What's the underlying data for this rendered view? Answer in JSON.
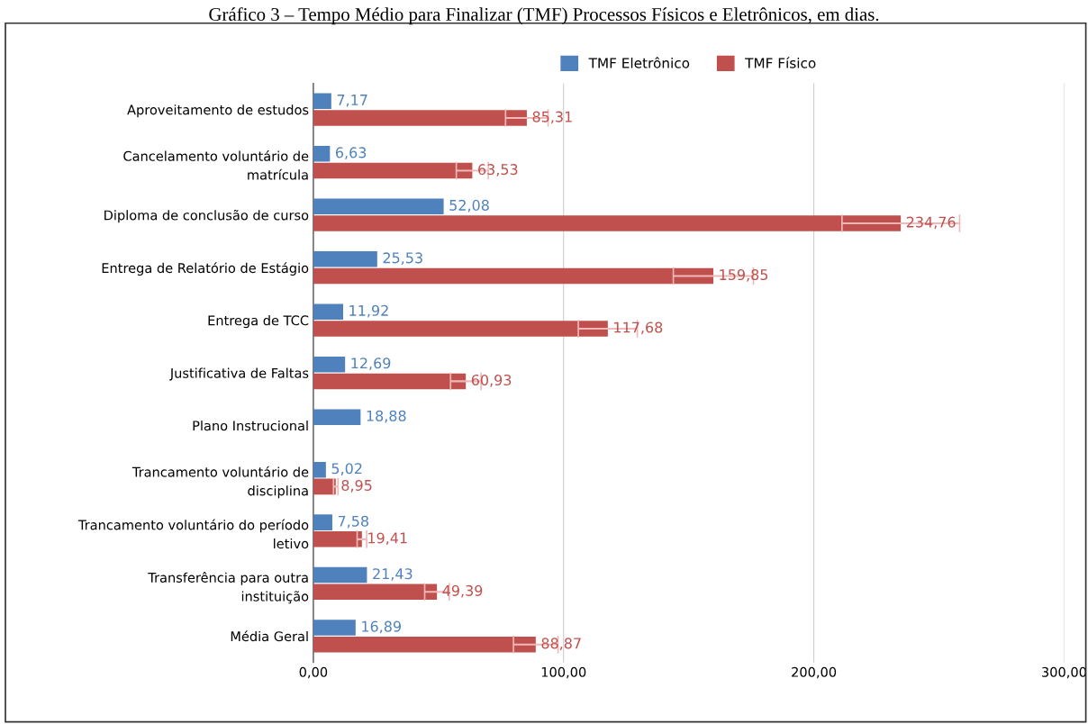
{
  "chart_data": {
    "type": "bar",
    "orientation": "horizontal",
    "title": "Gráfico 3 – Tempo Médio para Finalizar (TMF) Processos Físicos e Eletrônicos, em dias.",
    "categories": [
      "Aproveitamento de estudos",
      "Cancelamento voluntário de\nmatrícula",
      "Diploma de conclusão de curso",
      "Entrega de Relatório de Estágio",
      "Entrega de TCC",
      "Justificativa de Faltas",
      "Plano Instrucional",
      "Trancamento voluntário de\ndisciplina",
      "Trancamento voluntário do período\nletivo",
      "Transferência para outra\ninstituição",
      "Média Geral"
    ],
    "series": [
      {
        "name": "TMF Eletrônico",
        "color": "#4f81bd",
        "values": [
          7.17,
          6.63,
          52.08,
          25.53,
          11.92,
          12.69,
          18.88,
          5.02,
          7.58,
          21.43,
          16.89
        ],
        "value_labels": [
          "7,17",
          "6,63",
          "52,08",
          "25,53",
          "11,92",
          "12,69",
          "18,88",
          "5,02",
          "7,58",
          "21,43",
          "16,89"
        ]
      },
      {
        "name": "TMF Físico",
        "color": "#c0504d",
        "values": [
          85.31,
          63.53,
          234.76,
          159.85,
          117.68,
          60.93,
          null,
          8.95,
          19.41,
          49.39,
          88.87
        ],
        "value_labels": [
          "85,31",
          "63,53",
          "234,76",
          "159,85",
          "117,68",
          "60,93",
          null,
          "8,95",
          "19,41",
          "49,39",
          "88,87"
        ],
        "errors": [
          8.5,
          6.4,
          23.5,
          16.0,
          11.8,
          6.1,
          null,
          0.9,
          1.9,
          4.9,
          8.9
        ]
      }
    ],
    "xlim": [
      0,
      300
    ],
    "xticks": [
      {
        "value": 0,
        "label": "0,00"
      },
      {
        "value": 100,
        "label": "100,00"
      },
      {
        "value": 200,
        "label": "200,00"
      },
      {
        "value": 300,
        "label": "300,00"
      }
    ],
    "grid": "x",
    "legend": "top"
  }
}
